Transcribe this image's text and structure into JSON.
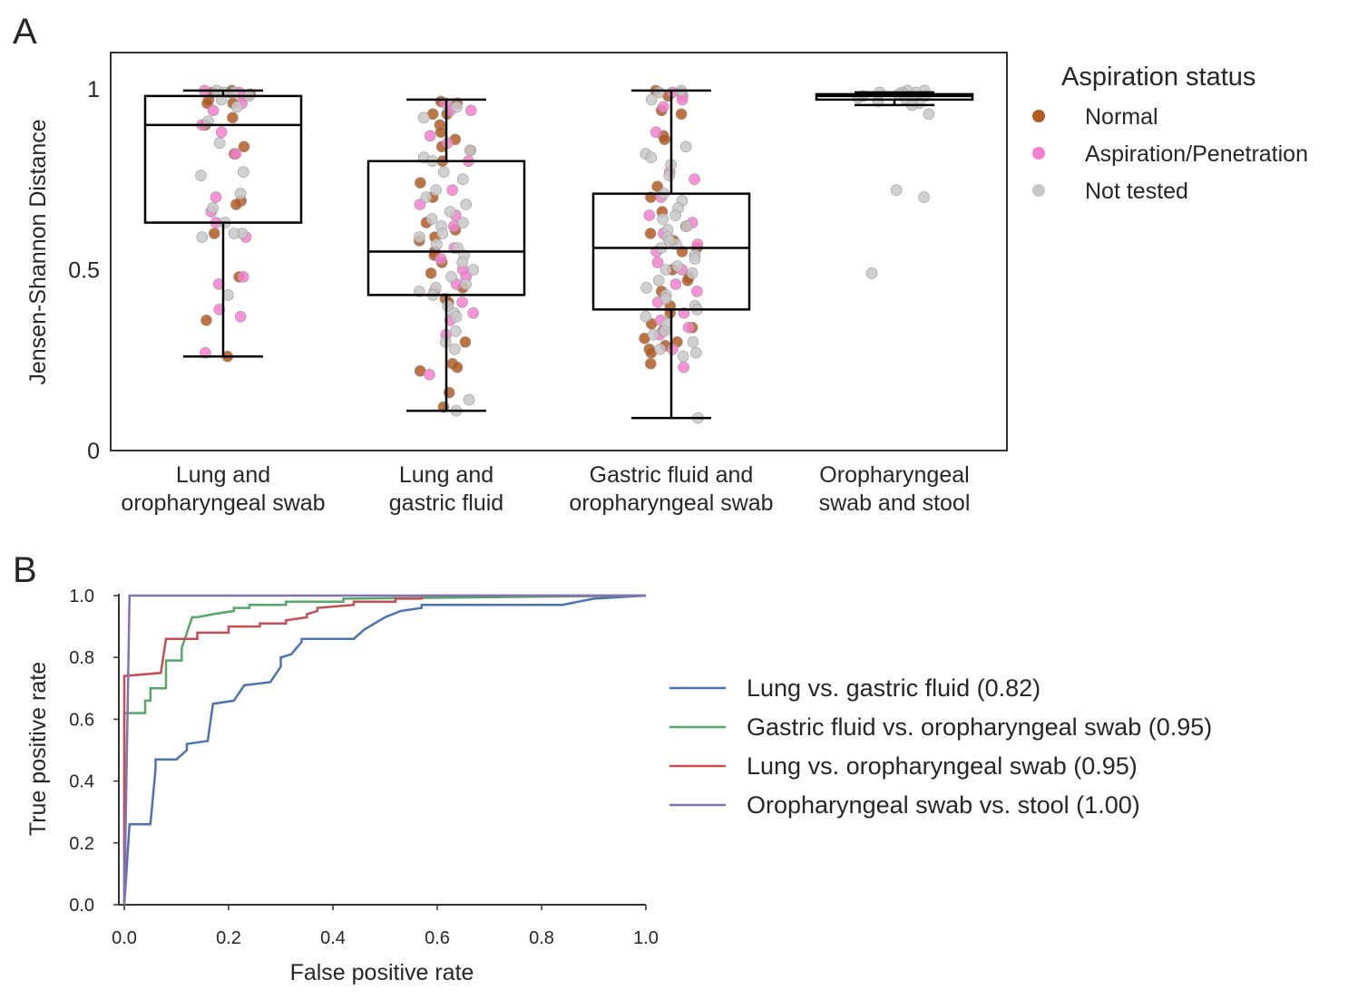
{
  "panels": {
    "a_letter": "A",
    "b_letter": "B"
  },
  "chart_data": [
    {
      "type": "box",
      "panel": "A",
      "ylabel": "Jensen-Shannon Distance",
      "ylim": [
        0,
        1.1
      ],
      "yticks": [
        "0",
        "0.5",
        "1"
      ],
      "ytick_values": [
        0,
        0.5,
        1
      ],
      "grid": false,
      "categories": [
        "Lung and\noropharyngeal swab",
        "Lung and\ngastric fluid",
        "Gastric fluid and\noropharyngeal swab",
        "Oropharyngeal\nswab and stool"
      ],
      "boxes": [
        {
          "whisker_low": 0.26,
          "q1": 0.63,
          "median": 0.9,
          "q3": 0.98,
          "whisker_high": 0.995
        },
        {
          "whisker_low": 0.11,
          "q1": 0.43,
          "median": 0.55,
          "q3": 0.8,
          "whisker_high": 0.97
        },
        {
          "whisker_low": 0.09,
          "q1": 0.39,
          "median": 0.56,
          "q3": 0.71,
          "whisker_high": 0.995
        },
        {
          "whisker_low": 0.955,
          "q1": 0.97,
          "median": 0.98,
          "q3": 0.985,
          "whisker_high": 0.99
        }
      ],
      "legend": {
        "title": "Aspiration status",
        "placement": "right",
        "entries": [
          {
            "label": "Normal",
            "color": "#b35a22"
          },
          {
            "label": "Aspiration/Penetration",
            "color": "#f47fd0"
          },
          {
            "label": "Not tested",
            "color": "#c8c8c8"
          }
        ]
      },
      "points": [
        {
          "Normal": [
            0.995,
            0.99,
            0.99,
            0.985,
            0.96,
            0.92,
            0.9,
            0.84,
            0.82,
            0.69,
            0.68,
            0.6,
            0.48,
            0.36,
            0.26,
            0.97,
            0.96
          ],
          "Aspiration/Penetration": [
            0.99,
            0.98,
            0.96,
            0.9,
            0.88,
            0.82,
            0.7,
            0.66,
            0.63,
            0.59,
            0.48,
            0.46,
            0.39,
            0.37,
            0.27,
            0.995,
            0.94
          ],
          "Not tested": [
            0.995,
            0.99,
            0.98,
            0.97,
            0.95,
            0.91,
            0.85,
            0.77,
            0.71,
            0.67,
            0.63,
            0.6,
            0.6,
            0.59,
            0.43,
            0.76,
            0.99
          ]
        },
        {
          "Normal": [
            0.965,
            0.96,
            0.93,
            0.9,
            0.88,
            0.84,
            0.83,
            0.8,
            0.74,
            0.7,
            0.63,
            0.61,
            0.58,
            0.55,
            0.54,
            0.52,
            0.49,
            0.45,
            0.42,
            0.41,
            0.3,
            0.24,
            0.23,
            0.22,
            0.16,
            0.12,
            0.93,
            0.86,
            0.59
          ],
          "Aspiration/Penetration": [
            0.96,
            0.94,
            0.87,
            0.85,
            0.8,
            0.72,
            0.68,
            0.62,
            0.56,
            0.53,
            0.5,
            0.46,
            0.44,
            0.41,
            0.38,
            0.32,
            0.21,
            0.94,
            0.65,
            0.48,
            0.36
          ],
          "Not tested": [
            0.95,
            0.92,
            0.83,
            0.81,
            0.8,
            0.77,
            0.75,
            0.72,
            0.68,
            0.64,
            0.63,
            0.62,
            0.6,
            0.59,
            0.57,
            0.56,
            0.54,
            0.52,
            0.5,
            0.48,
            0.46,
            0.45,
            0.44,
            0.43,
            0.4,
            0.38,
            0.37,
            0.33,
            0.3,
            0.28,
            0.14,
            0.11,
            0.7,
            0.66
          ]
        },
        {
          "Normal": [
            0.995,
            0.99,
            0.98,
            0.94,
            0.93,
            0.87,
            0.86,
            0.73,
            0.66,
            0.6,
            0.58,
            0.56,
            0.55,
            0.5,
            0.48,
            0.47,
            0.44,
            0.4,
            0.38,
            0.35,
            0.34,
            0.33,
            0.31,
            0.3,
            0.29,
            0.28,
            0.27,
            0.24,
            0.7,
            0.62
          ],
          "Aspiration/Penetration": [
            0.98,
            0.97,
            0.95,
            0.88,
            0.77,
            0.75,
            0.7,
            0.65,
            0.63,
            0.6,
            0.57,
            0.55,
            0.52,
            0.46,
            0.44,
            0.41,
            0.38,
            0.36,
            0.34,
            0.32,
            0.28,
            0.23,
            0.99,
            0.5
          ],
          "Not tested": [
            0.995,
            0.99,
            0.97,
            0.84,
            0.82,
            0.81,
            0.79,
            0.76,
            0.71,
            0.69,
            0.67,
            0.65,
            0.64,
            0.61,
            0.59,
            0.57,
            0.56,
            0.54,
            0.53,
            0.51,
            0.5,
            0.49,
            0.47,
            0.45,
            0.43,
            0.42,
            0.4,
            0.39,
            0.37,
            0.35,
            0.33,
            0.32,
            0.3,
            0.28,
            0.27,
            0.26,
            0.09,
            0.62,
            0.58
          ]
        },
        {
          "Normal": [],
          "Aspiration/Penetration": [],
          "Not tested": [
            0.995,
            0.995,
            0.99,
            0.99,
            0.99,
            0.985,
            0.985,
            0.98,
            0.98,
            0.975,
            0.975,
            0.97,
            0.965,
            0.96,
            0.955,
            0.93,
            0.72,
            0.7,
            0.49
          ]
        }
      ]
    },
    {
      "type": "line",
      "panel": "B",
      "xlabel": "False positive rate",
      "ylabel": "True positive rate",
      "xlim": [
        -0.01,
        1.0
      ],
      "ylim": [
        0,
        1.0
      ],
      "xticks": [
        "0.0",
        "0.2",
        "0.4",
        "0.6",
        "0.8",
        "1.0"
      ],
      "xtick_values": [
        0,
        0.2,
        0.4,
        0.6,
        0.8,
        1.0
      ],
      "yticks": [
        "0.0",
        "0.2",
        "0.4",
        "0.6",
        "0.8",
        "1.0"
      ],
      "ytick_values": [
        0,
        0.2,
        0.4,
        0.6,
        0.8,
        1.0
      ],
      "grid": false,
      "legend_placement": "right",
      "series": [
        {
          "name": "Lung vs. gastric fluid (0.82)",
          "color": "#4c72b0",
          "x": [
            0,
            0.01,
            0.01,
            0.05,
            0.05,
            0.06,
            0.06,
            0.1,
            0.1,
            0.12,
            0.12,
            0.16,
            0.16,
            0.17,
            0.17,
            0.21,
            0.21,
            0.23,
            0.23,
            0.28,
            0.28,
            0.3,
            0.3,
            0.32,
            0.32,
            0.34,
            0.34,
            0.44,
            0.44,
            0.46,
            0.46,
            0.47,
            0.47,
            0.5,
            0.5,
            0.53,
            0.53,
            0.57,
            0.57,
            0.84,
            0.84,
            0.9,
            0.9,
            1.0
          ],
          "y": [
            0,
            0.26,
            0.26,
            0.26,
            0.26,
            0.44,
            0.47,
            0.47,
            0.47,
            0.5,
            0.52,
            0.53,
            0.53,
            0.65,
            0.65,
            0.66,
            0.66,
            0.71,
            0.71,
            0.72,
            0.72,
            0.77,
            0.8,
            0.81,
            0.81,
            0.85,
            0.86,
            0.86,
            0.86,
            0.89,
            0.89,
            0.9,
            0.9,
            0.93,
            0.93,
            0.95,
            0.95,
            0.96,
            0.97,
            0.97,
            0.97,
            0.99,
            0.99,
            1.0
          ]
        },
        {
          "name": "Gastric fluid vs. oropharyngeal swab (0.95)",
          "color": "#55a868",
          "x": [
            0,
            0.0,
            0.04,
            0.04,
            0.05,
            0.05,
            0.08,
            0.08,
            0.11,
            0.11,
            0.13,
            0.14,
            0.14,
            0.17,
            0.17,
            0.21,
            0.21,
            0.24,
            0.24,
            0.31,
            0.31,
            0.42,
            0.42,
            1.0
          ],
          "y": [
            0,
            0.62,
            0.62,
            0.66,
            0.66,
            0.7,
            0.7,
            0.79,
            0.79,
            0.83,
            0.93,
            0.93,
            0.93,
            0.94,
            0.94,
            0.95,
            0.96,
            0.96,
            0.97,
            0.97,
            0.98,
            0.98,
            0.99,
            1.0
          ]
        },
        {
          "name": "Lung vs. oropharyngeal swab (0.95)",
          "color": "#c44e52",
          "x": [
            0,
            0.0,
            0.0,
            0.07,
            0.08,
            0.08,
            0.14,
            0.14,
            0.2,
            0.2,
            0.26,
            0.26,
            0.31,
            0.31,
            0.35,
            0.35,
            0.37,
            0.37,
            0.44,
            0.44,
            0.52,
            0.52,
            0.57,
            0.57,
            1.0
          ],
          "y": [
            0,
            0.35,
            0.74,
            0.75,
            0.86,
            0.86,
            0.86,
            0.88,
            0.88,
            0.9,
            0.9,
            0.91,
            0.91,
            0.92,
            0.93,
            0.94,
            0.95,
            0.96,
            0.97,
            0.98,
            0.98,
            0.99,
            0.99,
            1.0,
            1.0
          ]
        },
        {
          "name": "Oropharyngeal swab vs. stool (1.00)",
          "color": "#8172b2",
          "x": [
            0,
            0.01,
            0.01,
            1.0
          ],
          "y": [
            0,
            1.0,
            1.0,
            1.0
          ]
        }
      ]
    }
  ]
}
